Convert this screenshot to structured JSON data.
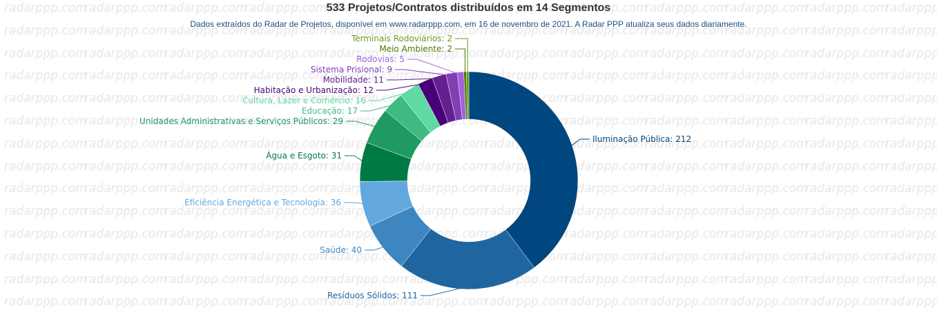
{
  "watermark": "radarppp.com",
  "chart_data": {
    "type": "pie",
    "donut": true,
    "title": "533 Projetos/Contratos distribuídos em 14 Segmentos",
    "subtitle": "Dados extraídos do Radar de Projetos, disponível em www.radarppp.com, em 16 de novembro de 2021. A Radar PPP atualiza seus dados diariamente.",
    "slices": [
      {
        "label": "Iluminação Pública",
        "value": 212,
        "color": "#00467f"
      },
      {
        "label": "Resíduos Sólidos",
        "value": 111,
        "color": "#1f66a0"
      },
      {
        "label": "Saúde",
        "value": 40,
        "color": "#3e86c0"
      },
      {
        "label": "Eficiência Energética e Tecnologia",
        "value": 36,
        "color": "#62a8de"
      },
      {
        "label": "Água e Esgoto",
        "value": 31,
        "color": "#007a45"
      },
      {
        "label": "Unidades Administrativas e Serviços Públicos",
        "value": 29,
        "color": "#1f9a63"
      },
      {
        "label": "Educação",
        "value": 17,
        "color": "#3eba83"
      },
      {
        "label": "Cultura, Lazer e Comércio",
        "value": 16,
        "color": "#5fdaa4"
      },
      {
        "label": "Habitação e Urbanização",
        "value": 12,
        "color": "#48007a"
      },
      {
        "label": "Mobilidade",
        "value": 11,
        "color": "#642090"
      },
      {
        "label": "Sistema Prisional",
        "value": 9,
        "color": "#8040b4"
      },
      {
        "label": "Rodovias",
        "value": 5,
        "color": "#a263dc"
      },
      {
        "label": "Meio Ambiente",
        "value": 2,
        "color": "#4a7a00"
      },
      {
        "label": "Terminais Rodoviários",
        "value": 2,
        "color": "#6a9a20"
      }
    ]
  }
}
